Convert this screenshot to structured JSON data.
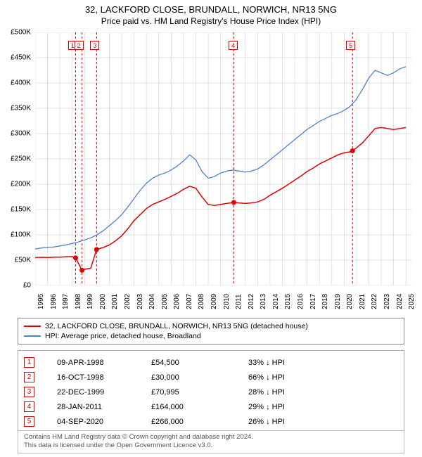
{
  "title": "32, LACKFORD CLOSE, BRUNDALL, NORWICH, NR13 5NG",
  "subtitle": "Price paid vs. HM Land Registry's House Price Index (HPI)",
  "chart": {
    "type": "line",
    "background_color": "#ffffff",
    "grid_color": "#d8d8d8",
    "xmin": 1995,
    "xmax": 2025.5,
    "ymin": 0,
    "ymax": 500000,
    "y_ticks": [
      0,
      50000,
      100000,
      150000,
      200000,
      250000,
      300000,
      350000,
      400000,
      450000,
      500000
    ],
    "y_tick_labels": [
      "£0",
      "£50K",
      "£100K",
      "£150K",
      "£200K",
      "£250K",
      "£300K",
      "£350K",
      "£400K",
      "£450K",
      "£500K"
    ],
    "x_ticks": [
      1995,
      1996,
      1997,
      1998,
      1999,
      2000,
      2001,
      2002,
      2003,
      2004,
      2005,
      2006,
      2007,
      2008,
      2009,
      2010,
      2011,
      2012,
      2013,
      2014,
      2015,
      2016,
      2017,
      2018,
      2019,
      2020,
      2021,
      2022,
      2023,
      2024,
      2025
    ],
    "label_fontsize": 10,
    "series": [
      {
        "name": "price_paid",
        "label": "32, LACKFORD CLOSE, BRUNDALL, NORWICH, NR13 5NG (detached house)",
        "color": "#e00000",
        "line_width": 1.5,
        "points": [
          [
            1995.0,
            55000
          ],
          [
            1995.5,
            55500
          ],
          [
            1996.0,
            55200
          ],
          [
            1996.5,
            55800
          ],
          [
            1997.0,
            56000
          ],
          [
            1997.5,
            56500
          ],
          [
            1998.0,
            57000
          ],
          [
            1998.27,
            54500
          ],
          [
            1998.79,
            30000
          ],
          [
            1998.8,
            30000
          ],
          [
            1999.0,
            32000
          ],
          [
            1999.5,
            34000
          ],
          [
            1999.97,
            70995
          ],
          [
            2000.5,
            75000
          ],
          [
            2001.0,
            80000
          ],
          [
            2001.5,
            88000
          ],
          [
            2002.0,
            98000
          ],
          [
            2002.5,
            112000
          ],
          [
            2003.0,
            128000
          ],
          [
            2003.5,
            140000
          ],
          [
            2004.0,
            152000
          ],
          [
            2004.5,
            160000
          ],
          [
            2005.0,
            165000
          ],
          [
            2005.5,
            170000
          ],
          [
            2006.0,
            176000
          ],
          [
            2006.5,
            182000
          ],
          [
            2007.0,
            190000
          ],
          [
            2007.5,
            196000
          ],
          [
            2008.0,
            192000
          ],
          [
            2008.5,
            175000
          ],
          [
            2009.0,
            160000
          ],
          [
            2009.5,
            158000
          ],
          [
            2010.0,
            160000
          ],
          [
            2010.5,
            162000
          ],
          [
            2011.07,
            164000
          ],
          [
            2011.5,
            163000
          ],
          [
            2012.0,
            162000
          ],
          [
            2012.5,
            163000
          ],
          [
            2013.0,
            165000
          ],
          [
            2013.5,
            170000
          ],
          [
            2014.0,
            178000
          ],
          [
            2014.5,
            185000
          ],
          [
            2015.0,
            192000
          ],
          [
            2015.5,
            200000
          ],
          [
            2016.0,
            208000
          ],
          [
            2016.5,
            216000
          ],
          [
            2017.0,
            225000
          ],
          [
            2017.5,
            232000
          ],
          [
            2018.0,
            240000
          ],
          [
            2018.5,
            246000
          ],
          [
            2019.0,
            252000
          ],
          [
            2019.5,
            258000
          ],
          [
            2020.0,
            262000
          ],
          [
            2020.5,
            264000
          ],
          [
            2020.68,
            266000
          ],
          [
            2021.0,
            272000
          ],
          [
            2021.5,
            282000
          ],
          [
            2022.0,
            296000
          ],
          [
            2022.5,
            310000
          ],
          [
            2023.0,
            312000
          ],
          [
            2023.5,
            310000
          ],
          [
            2024.0,
            308000
          ],
          [
            2024.5,
            310000
          ],
          [
            2025.0,
            312000
          ]
        ]
      },
      {
        "name": "hpi",
        "label": "HPI: Average price, detached house, Broadland",
        "color": "#5080d0",
        "line_width": 1.3,
        "points": [
          [
            1995.0,
            72000
          ],
          [
            1995.5,
            74000
          ],
          [
            1996.0,
            75000
          ],
          [
            1996.5,
            76000
          ],
          [
            1997.0,
            78000
          ],
          [
            1997.5,
            80000
          ],
          [
            1998.0,
            83000
          ],
          [
            1998.5,
            86000
          ],
          [
            1999.0,
            90000
          ],
          [
            1999.5,
            94000
          ],
          [
            2000.0,
            100000
          ],
          [
            2000.5,
            108000
          ],
          [
            2001.0,
            118000
          ],
          [
            2001.5,
            128000
          ],
          [
            2002.0,
            140000
          ],
          [
            2002.5,
            155000
          ],
          [
            2003.0,
            172000
          ],
          [
            2003.5,
            188000
          ],
          [
            2004.0,
            202000
          ],
          [
            2004.5,
            212000
          ],
          [
            2005.0,
            218000
          ],
          [
            2005.5,
            222000
          ],
          [
            2006.0,
            228000
          ],
          [
            2006.5,
            236000
          ],
          [
            2007.0,
            246000
          ],
          [
            2007.5,
            258000
          ],
          [
            2008.0,
            248000
          ],
          [
            2008.5,
            225000
          ],
          [
            2009.0,
            212000
          ],
          [
            2009.5,
            215000
          ],
          [
            2010.0,
            222000
          ],
          [
            2010.5,
            226000
          ],
          [
            2011.0,
            228000
          ],
          [
            2011.5,
            226000
          ],
          [
            2012.0,
            224000
          ],
          [
            2012.5,
            226000
          ],
          [
            2013.0,
            230000
          ],
          [
            2013.5,
            238000
          ],
          [
            2014.0,
            248000
          ],
          [
            2014.5,
            258000
          ],
          [
            2015.0,
            268000
          ],
          [
            2015.5,
            278000
          ],
          [
            2016.0,
            288000
          ],
          [
            2016.5,
            298000
          ],
          [
            2017.0,
            308000
          ],
          [
            2017.5,
            316000
          ],
          [
            2018.0,
            324000
          ],
          [
            2018.5,
            330000
          ],
          [
            2019.0,
            336000
          ],
          [
            2019.5,
            340000
          ],
          [
            2020.0,
            346000
          ],
          [
            2020.5,
            354000
          ],
          [
            2021.0,
            368000
          ],
          [
            2021.5,
            388000
          ],
          [
            2022.0,
            410000
          ],
          [
            2022.5,
            425000
          ],
          [
            2023.0,
            420000
          ],
          [
            2023.5,
            415000
          ],
          [
            2024.0,
            420000
          ],
          [
            2024.5,
            428000
          ],
          [
            2025.0,
            432000
          ]
        ]
      }
    ],
    "sale_points": [
      {
        "n": 1,
        "x": 1998.27,
        "y": 54500,
        "marker_x": 1998.0
      },
      {
        "n": 2,
        "x": 1998.79,
        "y": 30000,
        "marker_x": 1998.5
      },
      {
        "n": 3,
        "x": 1999.97,
        "y": 70995,
        "marker_x": 1999.8
      },
      {
        "n": 4,
        "x": 2011.07,
        "y": 164000,
        "marker_x": 2011.0
      },
      {
        "n": 5,
        "x": 2020.68,
        "y": 266000,
        "marker_x": 2020.5
      }
    ],
    "marker_color": "#e00000",
    "marker_dash": "3,3",
    "sale_dot_radius": 3.5
  },
  "legend": {
    "items": [
      {
        "color": "#e00000",
        "label": "32, LACKFORD CLOSE, BRUNDALL, NORWICH, NR13 5NG (detached house)"
      },
      {
        "color": "#5080d0",
        "label": "HPI: Average price, detached house, Broadland"
      }
    ]
  },
  "table": {
    "rows": [
      {
        "n": "1",
        "date": "09-APR-1998",
        "price": "£54,500",
        "pct": "33% ↓ HPI"
      },
      {
        "n": "2",
        "date": "16-OCT-1998",
        "price": "£30,000",
        "pct": "66% ↓ HPI"
      },
      {
        "n": "3",
        "date": "22-DEC-1999",
        "price": "£70,995",
        "pct": "28% ↓ HPI"
      },
      {
        "n": "4",
        "date": "28-JAN-2011",
        "price": "£164,000",
        "pct": "29% ↓ HPI"
      },
      {
        "n": "5",
        "date": "04-SEP-2020",
        "price": "£266,000",
        "pct": "26% ↓ HPI"
      }
    ]
  },
  "footer": {
    "line1": "Contains HM Land Registry data © Crown copyright and database right 2024.",
    "line2": "This data is licensed under the Open Government Licence v3.0."
  }
}
